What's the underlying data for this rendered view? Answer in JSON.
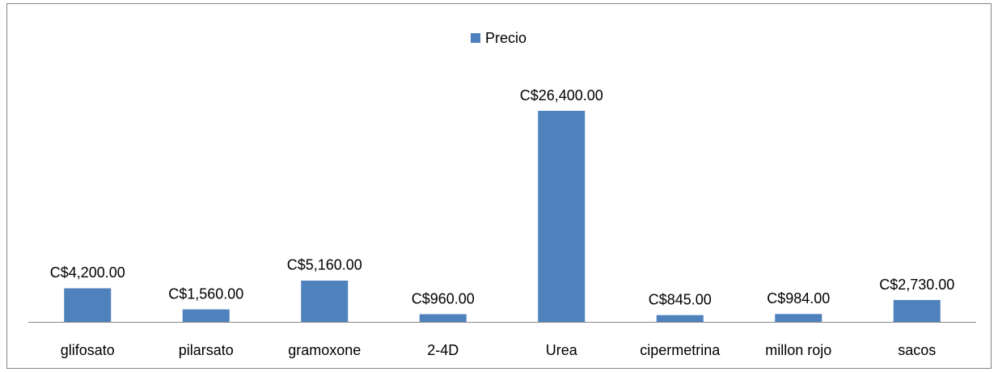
{
  "chart_data": {
    "type": "bar",
    "categories": [
      "glifosato",
      "pilarsato",
      "gramoxone",
      "2-4D",
      "Urea",
      "cipermetrina",
      "millon rojo",
      "sacos"
    ],
    "series": [
      {
        "name": "Precio",
        "color": "#4f81bd",
        "values": [
          4200,
          1560,
          5160,
          960,
          26400,
          845,
          984,
          2730
        ],
        "value_labels": [
          "C$4,200.00",
          "C$1,560.00",
          "C$5,160.00",
          "C$960.00",
          "C$26,400.00",
          "C$845.00",
          "C$984.00",
          "C$2,730.00"
        ]
      }
    ],
    "legend": "top"
  }
}
